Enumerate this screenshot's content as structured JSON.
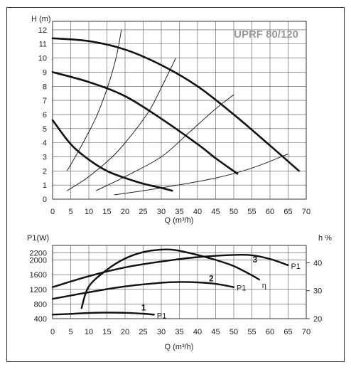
{
  "model": "UPRF 80/120",
  "head_chart": {
    "ylabel": "H (m)",
    "xlabel": "Q (m³/h)",
    "xticks": [
      0,
      5,
      10,
      15,
      20,
      25,
      30,
      35,
      40,
      45,
      50,
      55,
      60,
      65,
      70
    ],
    "yticks": [
      0,
      1,
      2,
      3,
      4,
      5,
      6,
      7,
      8,
      9,
      10,
      11,
      12
    ],
    "xlim": [
      0,
      70
    ],
    "ylim": [
      0,
      12.6
    ],
    "curves": [
      {
        "speed": 1,
        "points": [
          [
            0,
            5.6
          ],
          [
            5,
            3.9
          ],
          [
            10,
            2.8
          ],
          [
            15,
            2.0
          ],
          [
            20,
            1.5
          ],
          [
            25,
            1.1
          ],
          [
            30,
            0.8
          ],
          [
            33,
            0.6
          ]
        ]
      },
      {
        "speed": 2,
        "points": [
          [
            0,
            9.0
          ],
          [
            10,
            8.3
          ],
          [
            20,
            7.3
          ],
          [
            30,
            5.7
          ],
          [
            40,
            3.9
          ],
          [
            45,
            2.9
          ],
          [
            51,
            1.8
          ]
        ]
      },
      {
        "speed": 3,
        "points": [
          [
            0,
            11.4
          ],
          [
            10,
            11.2
          ],
          [
            20,
            10.6
          ],
          [
            30,
            9.5
          ],
          [
            40,
            8.0
          ],
          [
            50,
            6.0
          ],
          [
            60,
            3.8
          ],
          [
            68,
            2.0
          ]
        ]
      }
    ],
    "system_curves": [
      [
        [
          4,
          2.0
        ],
        [
          8,
          3.8
        ],
        [
          12,
          5.8
        ],
        [
          15,
          7.8
        ],
        [
          17.5,
          10.0
        ],
        [
          19,
          12.0
        ]
      ],
      [
        [
          4,
          0.6
        ],
        [
          10,
          1.6
        ],
        [
          18,
          3.4
        ],
        [
          26,
          6.0
        ],
        [
          30,
          7.9
        ],
        [
          34,
          10.0
        ]
      ],
      [
        [
          12,
          0.6
        ],
        [
          20,
          1.6
        ],
        [
          30,
          3.0
        ],
        [
          38,
          4.8
        ],
        [
          45,
          6.4
        ],
        [
          50,
          7.4
        ]
      ],
      [
        [
          17,
          0.3
        ],
        [
          30,
          0.8
        ],
        [
          45,
          1.5
        ],
        [
          55,
          2.2
        ],
        [
          65,
          3.2
        ]
      ]
    ]
  },
  "power_chart": {
    "ylabel_left": "P1(W)",
    "ylabel_right": "h %",
    "xlabel": "Q (m³/h)",
    "xticks": [
      0,
      5,
      10,
      15,
      20,
      25,
      30,
      35,
      40,
      45,
      50,
      55,
      60,
      65,
      70
    ],
    "yticks_left": [
      400,
      800,
      1200,
      1600,
      2000,
      2200
    ],
    "yticks_right": [
      20,
      30,
      40
    ],
    "xlim": [
      0,
      70
    ],
    "ylim_left": [
      400,
      2400
    ],
    "ylim_right": [
      20,
      46.2
    ],
    "series": [
      {
        "name": "P1",
        "number": "1",
        "points": [
          [
            0,
            510
          ],
          [
            5,
            530
          ],
          [
            10,
            555
          ],
          [
            15,
            565
          ],
          [
            20,
            560
          ],
          [
            25,
            535
          ],
          [
            28,
            510
          ]
        ]
      },
      {
        "name": "P1",
        "number": "2",
        "points": [
          [
            0,
            940
          ],
          [
            10,
            1120
          ],
          [
            20,
            1280
          ],
          [
            30,
            1380
          ],
          [
            35,
            1400
          ],
          [
            40,
            1390
          ],
          [
            45,
            1350
          ],
          [
            50,
            1260
          ]
        ]
      },
      {
        "name": "P1",
        "number": "3",
        "points": [
          [
            0,
            1260
          ],
          [
            10,
            1560
          ],
          [
            20,
            1800
          ],
          [
            30,
            1960
          ],
          [
            40,
            2080
          ],
          [
            50,
            2140
          ],
          [
            55,
            2130
          ],
          [
            60,
            2030
          ],
          [
            65,
            1860
          ]
        ]
      },
      {
        "name": "η",
        "number": "",
        "points": [
          [
            8,
            23.8
          ],
          [
            10,
            31.5
          ],
          [
            15,
            37.5
          ],
          [
            20,
            41.5
          ],
          [
            25,
            43.8
          ],
          [
            30,
            44.7
          ],
          [
            34,
            44.5
          ],
          [
            40,
            42.8
          ],
          [
            45,
            41.0
          ],
          [
            50,
            38.8
          ],
          [
            55,
            35.5
          ],
          [
            57,
            34.0
          ]
        ]
      }
    ]
  }
}
